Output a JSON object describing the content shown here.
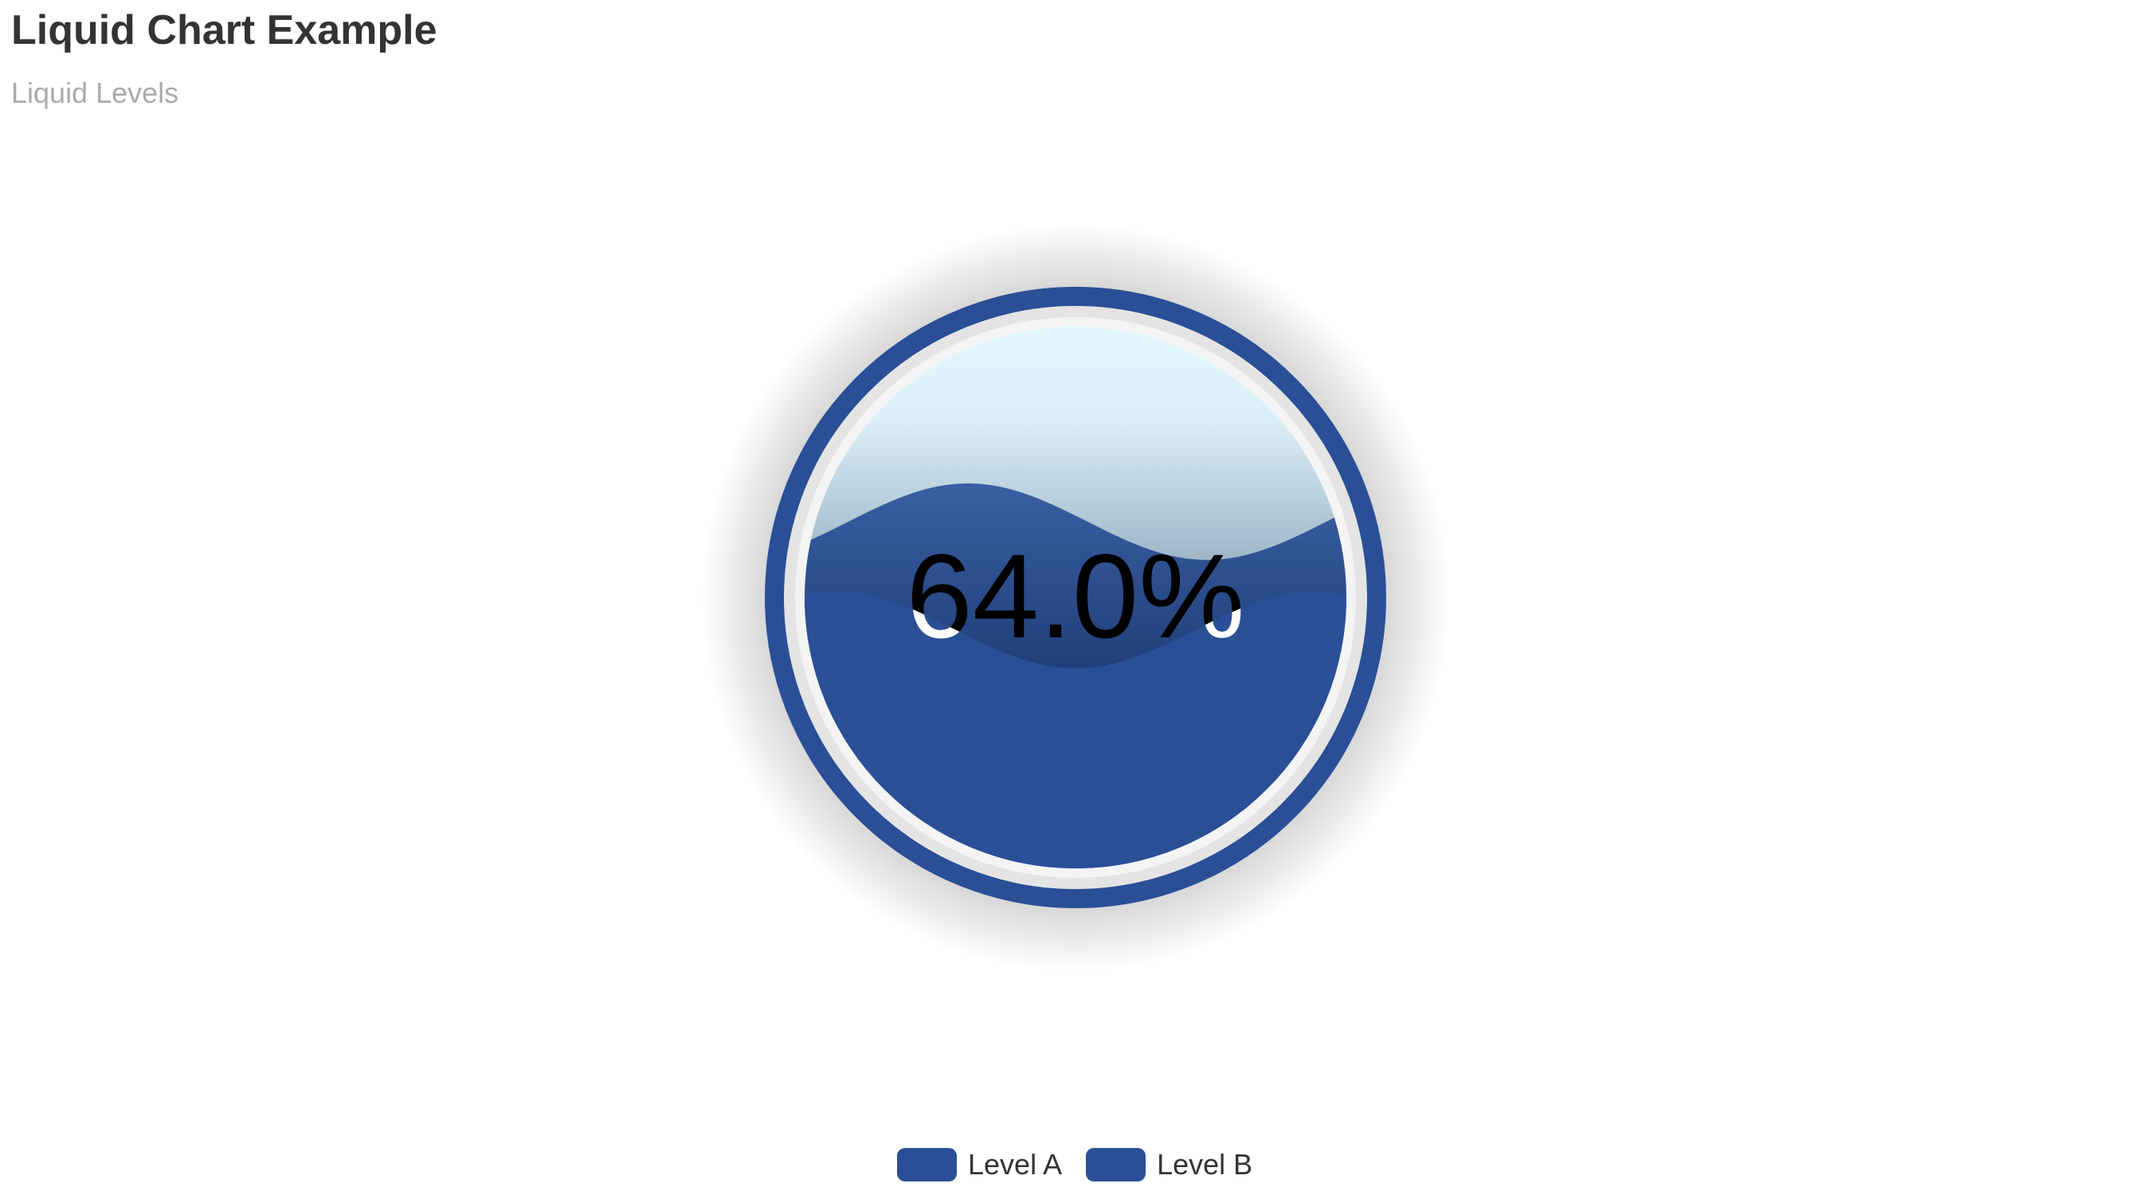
{
  "chart_data": {
    "type": "liquid",
    "title": "Liquid Chart Example",
    "subtitle": "Liquid Levels",
    "value_label": "64.0%",
    "series": [
      {
        "name": "Level A",
        "value": 0.64
      },
      {
        "name": "Level B",
        "value": 0.44
      }
    ],
    "legend": {
      "position": "bottom-center",
      "items": [
        "Level A",
        "Level B"
      ]
    },
    "colors": {
      "wave": "#2a4f97",
      "outline": "#2a4f97",
      "background_top": "#e3f6fd",
      "label": "#000000",
      "label_inside": "#ffffff"
    }
  }
}
